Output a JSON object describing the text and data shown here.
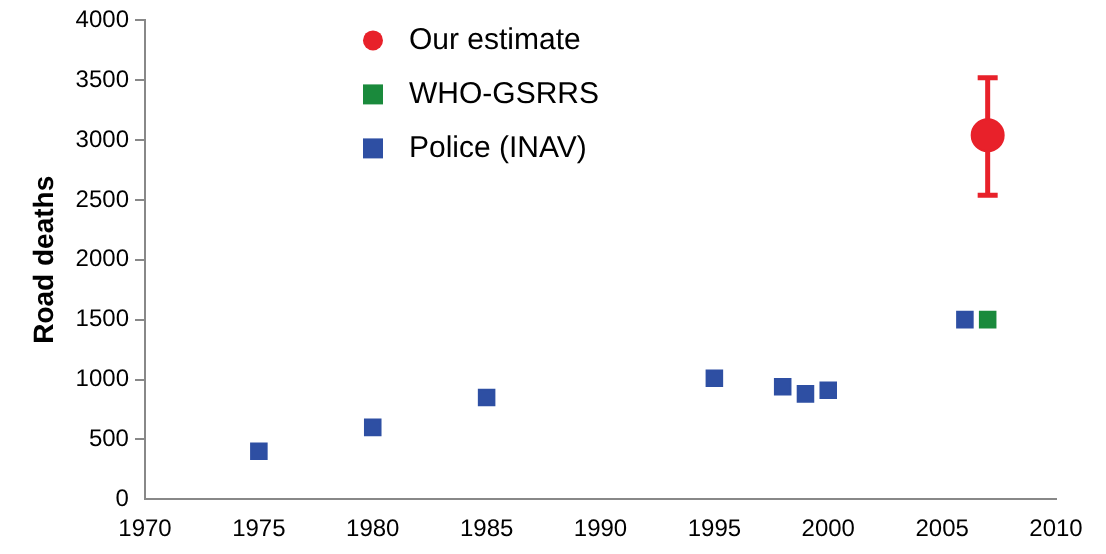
{
  "chart_data": {
    "type": "scatter",
    "ylabel": "Road deaths",
    "xlim": [
      1970,
      2010
    ],
    "xticks": [
      1970,
      1975,
      1980,
      1985,
      1990,
      1995,
      2000,
      2005,
      2010
    ],
    "ylim": [
      0,
      4000
    ],
    "yticks": [
      0,
      500,
      1000,
      1500,
      2000,
      2500,
      3000,
      3500,
      4000
    ],
    "grid": false,
    "legend": "top left",
    "series": [
      {
        "name": "Our estimate",
        "color": "#e8212a",
        "marker": "circle",
        "x": [
          2007
        ],
        "values": [
          3040
        ],
        "errors": [
          [
            2540,
            3520
          ]
        ]
      },
      {
        "name": "WHO-GSRRS",
        "color": "#1a8a3c",
        "marker": "square",
        "x": [
          2007
        ],
        "values": [
          1500
        ]
      },
      {
        "name": "Police (INAV)",
        "color": "#2e4fa3",
        "marker": "square",
        "x": [
          1975,
          1980,
          1985,
          1995,
          1998,
          1999,
          2000,
          2006
        ],
        "values": [
          400,
          600,
          850,
          1010,
          940,
          880,
          910,
          1500
        ]
      }
    ]
  }
}
